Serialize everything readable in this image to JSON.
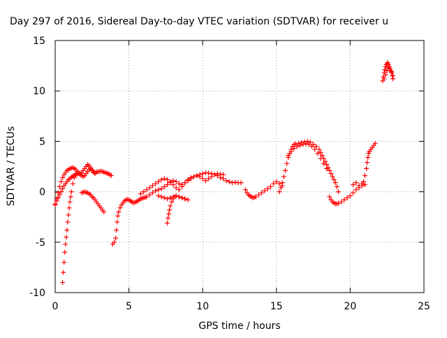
{
  "chart_data": {
    "type": "scatter",
    "title": "Day 297 of 2016, Sidereal Day-to-day VTEC variation (SDTVAR) for receiver u",
    "xlabel": "GPS time / hours",
    "ylabel": "SDTVAR / TECUs",
    "xlim": [
      0,
      25
    ],
    "ylim": [
      -10,
      15
    ],
    "xticks": [
      0,
      5,
      10,
      15,
      20,
      25
    ],
    "yticks": [
      -10,
      -5,
      0,
      5,
      10,
      15
    ],
    "grid": true,
    "legend": "none",
    "marker": "plus",
    "color": "#ff0000",
    "series": [
      {
        "x": [
          0.0,
          0.1,
          0.2,
          0.3,
          0.4,
          0.5,
          0.6,
          0.7,
          0.8,
          0.9,
          1.0,
          1.1,
          1.2,
          1.3,
          1.4,
          1.5,
          1.6,
          1.7,
          1.8,
          1.9,
          2.0,
          2.1,
          2.2,
          2.3,
          2.4,
          2.5,
          2.6,
          2.7,
          2.8,
          2.9,
          3.0,
          3.1,
          3.2,
          3.3,
          3.4,
          3.5,
          3.6,
          3.7,
          3.8
        ],
        "y": [
          -1.3,
          -0.7,
          -0.1,
          0.5,
          1.0,
          1.4,
          1.7,
          1.9,
          2.1,
          2.2,
          2.3,
          2.35,
          2.4,
          2.3,
          2.2,
          2.0,
          1.9,
          1.8,
          1.9,
          2.1,
          2.3,
          2.5,
          2.7,
          2.6,
          2.4,
          2.2,
          2.0,
          1.9,
          1.95,
          2.0,
          2.0,
          2.05,
          2.0,
          1.95,
          1.9,
          1.85,
          1.8,
          1.7,
          1.6
        ]
      },
      {
        "x": [
          0.0,
          0.1,
          0.2,
          0.3,
          0.4,
          0.5,
          0.6,
          0.7,
          0.8,
          0.9,
          1.0,
          1.1,
          1.2,
          1.3,
          1.4,
          1.5,
          1.6,
          1.7,
          1.8,
          1.9,
          2.0,
          2.1,
          2.2,
          2.3,
          2.4,
          2.5,
          2.6,
          2.7
        ],
        "y": [
          -1.2,
          -0.9,
          -0.6,
          -0.3,
          0.0,
          0.3,
          0.6,
          0.8,
          1.0,
          1.2,
          1.3,
          1.45,
          1.55,
          1.6,
          1.7,
          1.75,
          1.8,
          1.7,
          1.6,
          1.5,
          1.6,
          1.8,
          2.0,
          2.2,
          2.3,
          2.1,
          1.9,
          1.8
        ]
      },
      {
        "x": [
          0.5,
          0.55,
          0.6,
          0.65,
          0.7,
          0.75,
          0.8,
          0.85,
          0.9,
          0.95,
          1.0,
          1.05,
          1.1,
          1.2,
          1.3,
          1.4
        ],
        "y": [
          -9.0,
          -8.0,
          -7.0,
          -6.0,
          -5.2,
          -4.5,
          -3.8,
          -3.0,
          -2.3,
          -1.6,
          -1.0,
          -0.5,
          0.0,
          0.8,
          1.4,
          1.8
        ]
      },
      {
        "x": [
          1.8,
          1.9,
          2.0,
          2.1,
          2.2,
          2.3,
          2.4,
          2.5,
          2.6,
          2.7,
          2.8,
          2.9,
          3.0,
          3.1,
          3.2,
          3.3
        ],
        "y": [
          -0.1,
          -0.05,
          0.0,
          -0.05,
          -0.1,
          -0.2,
          -0.3,
          -0.5,
          -0.6,
          -0.8,
          -1.0,
          -1.2,
          -1.4,
          -1.6,
          -1.8,
          -2.0
        ]
      },
      {
        "x": [
          3.9,
          4.0,
          4.1,
          4.15,
          4.2,
          4.25,
          4.3,
          4.4,
          4.5,
          4.6,
          4.7,
          4.8,
          4.9,
          5.0,
          5.1,
          5.2,
          5.3,
          5.4,
          5.5,
          5.6,
          5.7,
          5.8,
          5.9,
          6.0,
          6.1,
          6.2,
          6.4,
          6.6,
          6.8,
          7.0,
          7.2,
          7.4,
          7.6,
          7.8,
          8.0,
          8.2,
          8.4,
          8.6,
          8.8,
          9.0,
          9.2,
          9.4,
          9.6,
          9.8,
          10.0,
          10.2,
          10.4,
          10.6,
          10.8,
          11.0,
          11.2,
          11.4,
          11.6,
          11.8,
          12.0,
          12.2,
          12.4,
          12.6
        ],
        "y": [
          -5.2,
          -5.0,
          -4.6,
          -3.8,
          -3.0,
          -2.4,
          -2.0,
          -1.6,
          -1.3,
          -1.1,
          -0.9,
          -0.8,
          -0.75,
          -0.8,
          -0.9,
          -1.0,
          -1.1,
          -1.05,
          -1.0,
          -0.9,
          -0.8,
          -0.7,
          -0.65,
          -0.6,
          -0.55,
          -0.5,
          -0.3,
          -0.1,
          0.1,
          0.2,
          0.3,
          0.5,
          0.7,
          0.9,
          1.1,
          1.0,
          0.8,
          0.7,
          0.9,
          1.1,
          1.3,
          1.5,
          1.6,
          1.7,
          1.8,
          1.9,
          1.85,
          1.8,
          1.7,
          1.6,
          1.4,
          1.3,
          1.1,
          1.0,
          0.9,
          0.95,
          0.9,
          0.9
        ]
      },
      {
        "x": [
          5.8,
          6.0,
          6.2,
          6.4,
          6.6,
          6.8,
          7.0,
          7.2,
          7.4,
          7.6,
          7.8,
          8.0,
          8.2,
          8.4,
          8.6,
          8.8,
          9.0,
          9.2,
          9.4,
          9.6,
          9.8,
          10.0,
          10.2,
          10.4,
          10.6,
          10.8,
          11.0,
          11.2,
          11.4
        ],
        "y": [
          -0.2,
          0.0,
          0.2,
          0.4,
          0.6,
          0.8,
          1.0,
          1.2,
          1.3,
          1.2,
          1.0,
          0.7,
          0.4,
          0.2,
          0.5,
          0.9,
          1.2,
          1.4,
          1.5,
          1.6,
          1.5,
          1.3,
          1.1,
          1.3,
          1.5,
          1.7,
          1.8,
          1.75,
          1.7
        ]
      },
      {
        "x": [
          7.6,
          7.65,
          7.7,
          7.75,
          7.8,
          7.9,
          8.0,
          8.1,
          8.2,
          8.4,
          8.6,
          8.8,
          9.0
        ],
        "y": [
          -3.1,
          -2.6,
          -2.2,
          -1.8,
          -1.4,
          -1.0,
          -0.7,
          -0.5,
          -0.4,
          -0.5,
          -0.6,
          -0.7,
          -0.8
        ]
      },
      {
        "x": [
          7.0,
          7.2,
          7.4,
          7.6,
          7.8,
          8.0,
          8.2,
          8.4,
          8.6,
          8.8
        ],
        "y": [
          -0.4,
          -0.5,
          -0.6,
          -0.7,
          -0.6,
          -0.5,
          -0.4,
          -0.5,
          -0.6,
          -0.7
        ]
      },
      {
        "x": [
          12.9,
          13.0,
          13.1,
          13.2,
          13.3,
          13.4,
          13.5,
          13.6,
          13.8,
          14.0,
          14.2,
          14.4,
          14.6,
          14.8,
          15.0,
          15.2,
          15.4
        ],
        "y": [
          0.2,
          -0.1,
          -0.3,
          -0.4,
          -0.5,
          -0.6,
          -0.55,
          -0.5,
          -0.3,
          -0.1,
          0.1,
          0.3,
          0.5,
          0.8,
          1.0,
          0.8,
          0.6
        ]
      },
      {
        "x": [
          15.2,
          15.3,
          15.4,
          15.5,
          15.6,
          15.7,
          15.8,
          15.9,
          16.0,
          16.1,
          16.2,
          16.3,
          16.5,
          16.7,
          16.9,
          17.1,
          17.3,
          17.5,
          17.7,
          17.9,
          18.0,
          18.1,
          18.2,
          18.3,
          18.4,
          18.5,
          18.6,
          18.7,
          18.8,
          18.9,
          19.0,
          19.1,
          19.2
        ],
        "y": [
          0.0,
          0.4,
          0.9,
          1.5,
          2.1,
          2.8,
          3.4,
          3.8,
          4.2,
          4.5,
          4.7,
          4.75,
          4.8,
          4.9,
          4.95,
          5.0,
          4.9,
          4.7,
          4.5,
          4.2,
          3.9,
          3.6,
          3.3,
          3.0,
          2.7,
          2.4,
          2.1,
          1.8,
          1.5,
          1.2,
          0.9,
          0.5,
          0.0
        ]
      },
      {
        "x": [
          15.8,
          16.0,
          16.2,
          16.4,
          16.6,
          16.8,
          17.0,
          17.2,
          17.4,
          17.6,
          17.8,
          18.0,
          18.2,
          18.4
        ],
        "y": [
          3.6,
          4.0,
          4.3,
          4.5,
          4.6,
          4.7,
          4.75,
          4.7,
          4.5,
          4.2,
          3.8,
          3.3,
          2.8,
          2.3
        ]
      },
      {
        "x": [
          18.6,
          18.7,
          18.8,
          18.9,
          19.0,
          19.1,
          19.2,
          19.4,
          19.6,
          19.8,
          20.0,
          20.2,
          20.4,
          20.6,
          20.8,
          21.0
        ],
        "y": [
          -0.5,
          -0.8,
          -1.0,
          -1.1,
          -1.2,
          -1.2,
          -1.15,
          -1.0,
          -0.8,
          -0.6,
          -0.4,
          -0.1,
          0.2,
          0.4,
          0.6,
          0.7
        ]
      },
      {
        "x": [
          20.2,
          20.4,
          20.6,
          20.8,
          20.9,
          21.0,
          21.1,
          21.15,
          21.2,
          21.25,
          21.3,
          21.4,
          21.5,
          21.6,
          21.7
        ],
        "y": [
          0.7,
          0.9,
          0.6,
          0.8,
          1.0,
          1.6,
          2.3,
          2.9,
          3.4,
          3.8,
          4.0,
          4.2,
          4.4,
          4.6,
          4.8
        ]
      },
      {
        "x": [
          22.2,
          22.25,
          22.3,
          22.35,
          22.4,
          22.45,
          22.5,
          22.55,
          22.6,
          22.65,
          22.7,
          22.75,
          22.8,
          22.85,
          22.9
        ],
        "y": [
          11.0,
          11.4,
          11.8,
          12.1,
          12.4,
          12.6,
          12.7,
          12.8,
          12.6,
          12.4,
          12.2,
          12.0,
          11.8,
          11.5,
          11.2
        ]
      },
      {
        "x": [
          22.3,
          22.4,
          22.5,
          22.6,
          22.7,
          22.8,
          22.9
        ],
        "y": [
          11.2,
          11.6,
          12.0,
          12.3,
          12.2,
          11.9,
          11.5
        ]
      }
    ]
  }
}
